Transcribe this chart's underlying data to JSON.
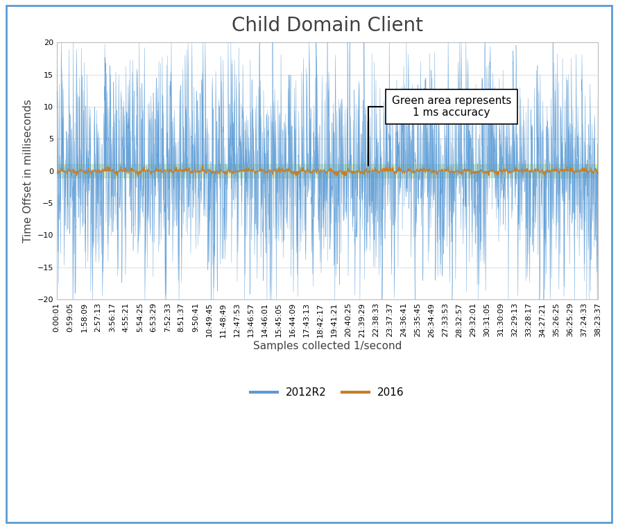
{
  "title": "Child Domain Client",
  "xlabel": "Samples collected 1/second",
  "ylabel": "Time Offset in milliseconds",
  "ylim": [
    -20,
    20
  ],
  "yticks": [
    -20,
    -15,
    -10,
    -5,
    0,
    5,
    10,
    15,
    20
  ],
  "n_samples": 2400,
  "blue_color": "#5B9BD5",
  "orange_color": "#C97D24",
  "green_fill_color": "#92D050",
  "green_fill_alpha": 0.35,
  "green_band_low": -1,
  "green_band_high": 1,
  "annotation_text": "Green area represents\n1 ms accuracy",
  "legend_2012r2": "2012R2",
  "legend_2016": "2016",
  "background_color": "#FFFFFF",
  "border_color": "#5B9BD5",
  "title_fontsize": 20,
  "axis_label_fontsize": 11,
  "tick_fontsize": 8,
  "x_labels": [
    "0:00:01",
    "0:59:05",
    "1:58:09",
    "2:57:13",
    "3:56:17",
    "4:55:21",
    "5:54:25",
    "6:53:29",
    "7:52:33",
    "8:51:37",
    "9:50:41",
    "10:49:45",
    "11:48:49",
    "12:47:53",
    "13:46:57",
    "14:46:01",
    "15:45:05",
    "16:44:09",
    "17:43:13",
    "18:42:17",
    "19:41:21",
    "20:40:25",
    "21:39:29",
    "22:38:33",
    "23:37:37",
    "24:36:41",
    "25:35:45",
    "26:34:49",
    "27:33:53",
    "28:32:57",
    "29:32:01",
    "30:31:05",
    "31:30:09",
    "32:29:13",
    "33:28:17",
    "34:27:21",
    "35:26:25",
    "36:25:29",
    "37:24:33",
    "38:23:37"
  ]
}
